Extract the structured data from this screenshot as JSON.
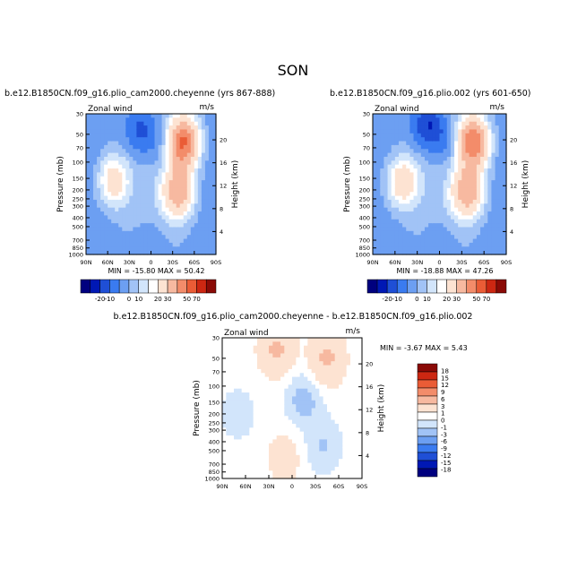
{
  "main_title": "SON",
  "colors": {
    "wind_bar": [
      "#00007f",
      "#0018b4",
      "#1f4fd6",
      "#3a7bf0",
      "#6c9ff2",
      "#a1c3f6",
      "#d2e5fb",
      "#ffffff",
      "#fde3d2",
      "#f7b9a0",
      "#f38c6a",
      "#ea5c36",
      "#cc2712",
      "#8a0a06"
    ],
    "diff_bar": [
      "#00007f",
      "#0018b4",
      "#1f4fd6",
      "#3a7bf0",
      "#6c9ff2",
      "#a1c3f6",
      "#d2e5fb",
      "#ffffff",
      "#fde3d2",
      "#f7b9a0",
      "#f38c6a",
      "#ea5c36",
      "#cc2712",
      "#8a0a06"
    ]
  },
  "chart_data": [
    {
      "type": "heatmap",
      "title": "b.e12.B1850CN.f09_g16.plio_cam2000.cheyenne (yrs 867-888)",
      "variable": "Zonal wind",
      "units": "m/s",
      "ylabel": "Pressure (mb)",
      "y2label": "Height (km)",
      "x": [
        "90N",
        "60N",
        "30N",
        "0",
        "30S",
        "60S",
        "90S"
      ],
      "y": [
        "30",
        "50",
        "70",
        "100",
        "150",
        "200",
        "250",
        "300",
        "400",
        "500",
        "700",
        "850",
        "1000"
      ],
      "y2": [
        "20",
        "16",
        "12",
        "8",
        "4"
      ],
      "min_max": "MIN = -15.80   MAX =  50.42",
      "colorbar": [
        "-20",
        "-10",
        "0",
        "10",
        "20",
        "30",
        "50",
        "70"
      ],
      "features": [
        {
          "lat": 52,
          "p": 160,
          "u": 22
        },
        {
          "lat": 15,
          "p": 45,
          "u": -12
        },
        {
          "lat": -15,
          "p": 60,
          "u": -6
        },
        {
          "lat": -45,
          "p": 60,
          "u": 48
        },
        {
          "lat": -38,
          "p": 210,
          "u": 34
        },
        {
          "lat": 0,
          "p": 850,
          "u": -6
        }
      ]
    },
    {
      "type": "heatmap",
      "title": "b.e12.B1850CN.f09_g16.plio.002 (yrs 601-650)",
      "variable": "Zonal wind",
      "units": "m/s",
      "ylabel": "Pressure (mb)",
      "y2label": "Height (km)",
      "x": [
        "90N",
        "60N",
        "30N",
        "0",
        "30S",
        "60S",
        "90S"
      ],
      "y": [
        "30",
        "50",
        "70",
        "100",
        "150",
        "200",
        "250",
        "300",
        "400",
        "500",
        "700",
        "850",
        "1000"
      ],
      "y2": [
        "20",
        "16",
        "12",
        "8",
        "4"
      ],
      "min_max": "MIN = -18.88   MAX =  47.26",
      "colorbar": [
        "-20",
        "-10",
        "0",
        "10",
        "20",
        "30",
        "50",
        "70"
      ],
      "features": [
        {
          "lat": 50,
          "p": 165,
          "u": 24
        },
        {
          "lat": 15,
          "p": 40,
          "u": -16
        },
        {
          "lat": -15,
          "p": 60,
          "u": -8
        },
        {
          "lat": -45,
          "p": 60,
          "u": 46
        },
        {
          "lat": -38,
          "p": 210,
          "u": 34
        },
        {
          "lat": 0,
          "p": 850,
          "u": -6
        }
      ]
    },
    {
      "type": "heatmap",
      "title": "b.e12.B1850CN.f09_g16.plio_cam2000.cheyenne - b.e12.B1850CN.f09_g16.plio.002",
      "variable": "Zonal wind",
      "units": "m/s",
      "ylabel": "Pressure (mb)",
      "y2label": "Height (km)",
      "x": [
        "90N",
        "60N",
        "30N",
        "0",
        "30S",
        "60S",
        "90S"
      ],
      "y": [
        "30",
        "50",
        "70",
        "100",
        "150",
        "200",
        "250",
        "300",
        "400",
        "500",
        "700",
        "850",
        "1000"
      ],
      "y2": [
        "20",
        "16",
        "12",
        "8",
        "4"
      ],
      "min_max": "MIN =  -3.67   MAX =   5.43",
      "colorbar": [
        "18",
        "15",
        "12",
        "9",
        "6",
        "3",
        "1",
        "0",
        "-1",
        "-3",
        "-6",
        "-9",
        "-12",
        "-15",
        "-18"
      ],
      "features": [
        {
          "lat": 20,
          "p": 40,
          "u": 3
        },
        {
          "lat": -45,
          "p": 50,
          "u": 3
        },
        {
          "lat": -15,
          "p": 140,
          "u": -2
        },
        {
          "lat": 70,
          "p": 200,
          "u": -1
        },
        {
          "lat": -40,
          "p": 450,
          "u": -1.5
        },
        {
          "lat": 10,
          "p": 600,
          "u": 1.5
        }
      ]
    }
  ]
}
